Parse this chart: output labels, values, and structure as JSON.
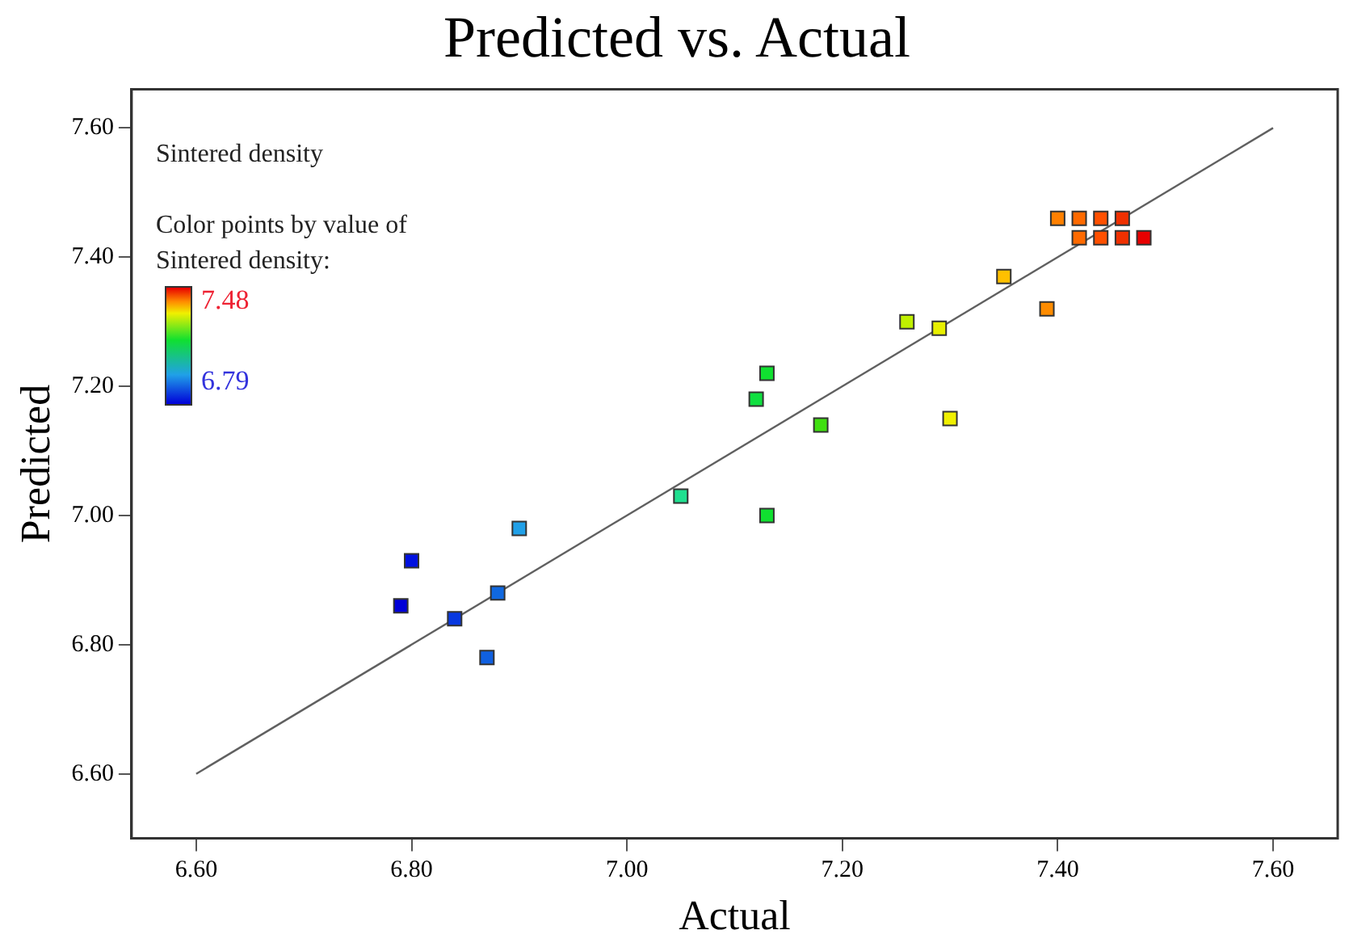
{
  "chart_data": {
    "type": "scatter",
    "title": "Predicted vs. Actual",
    "xlabel": "Actual",
    "ylabel": "Predicted",
    "annotations": [
      "Sintered density",
      "Color points by value of Sintered density:",
      "7.48",
      "6.79"
    ],
    "xlim": [
      6.54,
      7.66
    ],
    "ylim": [
      6.5,
      7.66
    ],
    "xticks": [
      {
        "value": 6.6,
        "label": "6.60"
      },
      {
        "value": 6.8,
        "label": "6.80"
      },
      {
        "value": 7.0,
        "label": "7.00"
      },
      {
        "value": 7.2,
        "label": "7.20"
      },
      {
        "value": 7.4,
        "label": "7.40"
      },
      {
        "value": 7.6,
        "label": "7.60"
      }
    ],
    "yticks": [
      {
        "value": 6.6,
        "label": "6.60"
      },
      {
        "value": 6.8,
        "label": "6.80"
      },
      {
        "value": 7.0,
        "label": "7.00"
      },
      {
        "value": 7.2,
        "label": "7.20"
      },
      {
        "value": 7.4,
        "label": "7.40"
      },
      {
        "value": 7.6,
        "label": "7.60"
      }
    ],
    "grid": false,
    "legend": false,
    "marker": "square",
    "series": [
      {
        "x": [
          6.8,
          6.79,
          6.84,
          6.88,
          6.87,
          6.9,
          7.05,
          7.13,
          7.13,
          7.12,
          7.18,
          7.3,
          7.26,
          7.29,
          7.35,
          7.39,
          7.4,
          7.42,
          7.44,
          7.46,
          7.42,
          7.44,
          7.46,
          7.48
        ],
        "values": [
          6.93,
          6.86,
          6.84,
          6.88,
          6.78,
          6.98,
          7.03,
          7.0,
          7.22,
          7.18,
          7.14,
          7.15,
          7.3,
          7.29,
          7.37,
          7.32,
          7.46,
          7.46,
          7.46,
          7.46,
          7.43,
          7.43,
          7.43,
          7.43
        ],
        "colors": [
          "#0010e0",
          "#0000d8",
          "#0838e0",
          "#1068e0",
          "#1060e0",
          "#20a0e8",
          "#20e090",
          "#10e030",
          "#10e030",
          "#10e040",
          "#40e010",
          "#f0f000",
          "#c0f000",
          "#e8f000",
          "#ffc000",
          "#ff8c00",
          "#ff8000",
          "#ff6a00",
          "#ff5000",
          "#f03000",
          "#ff6a00",
          "#ff5000",
          "#f03000",
          "#e80000"
        ]
      },
      {
        "type": "line",
        "x": [
          6.6,
          7.6
        ],
        "values": [
          6.6,
          7.6
        ],
        "color": "#606060",
        "marker": "none",
        "line_style": "solid"
      }
    ]
  }
}
